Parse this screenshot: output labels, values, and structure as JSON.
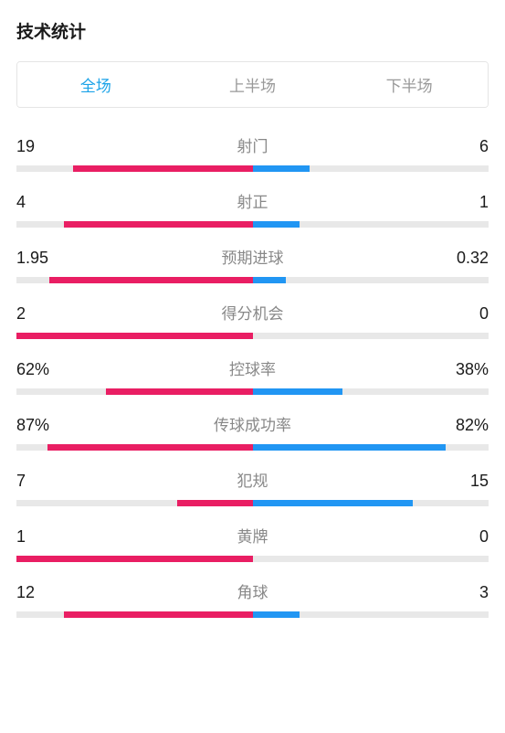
{
  "title": "技术统计",
  "tabs": [
    {
      "label": "全场",
      "active": true
    },
    {
      "label": "上半场",
      "active": false
    },
    {
      "label": "下半场",
      "active": false
    }
  ],
  "colors": {
    "left": "#e91e63",
    "right": "#2196f3",
    "track": "#e8e8e8",
    "tabActive": "#1ba3e8",
    "tabInactive": "#999999",
    "labelColor": "#888888",
    "valueColor": "#1a1a1a"
  },
  "stats": [
    {
      "label": "射门",
      "leftValue": "19",
      "rightValue": "6",
      "leftPct": 76,
      "rightPct": 24
    },
    {
      "label": "射正",
      "leftValue": "4",
      "rightValue": "1",
      "leftPct": 80,
      "rightPct": 20
    },
    {
      "label": "预期进球",
      "leftValue": "1.95",
      "rightValue": "0.32",
      "leftPct": 86,
      "rightPct": 14
    },
    {
      "label": "得分机会",
      "leftValue": "2",
      "rightValue": "0",
      "leftPct": 100,
      "rightPct": 0
    },
    {
      "label": "控球率",
      "leftValue": "62%",
      "rightValue": "38%",
      "leftPct": 62,
      "rightPct": 38
    },
    {
      "label": "传球成功率",
      "leftValue": "87%",
      "rightValue": "82%",
      "leftPct": 87,
      "rightPct": 82
    },
    {
      "label": "犯规",
      "leftValue": "7",
      "rightValue": "15",
      "leftPct": 32,
      "rightPct": 68
    },
    {
      "label": "黄牌",
      "leftValue": "1",
      "rightValue": "0",
      "leftPct": 100,
      "rightPct": 0
    },
    {
      "label": "角球",
      "leftValue": "12",
      "rightValue": "3",
      "leftPct": 80,
      "rightPct": 20
    }
  ]
}
